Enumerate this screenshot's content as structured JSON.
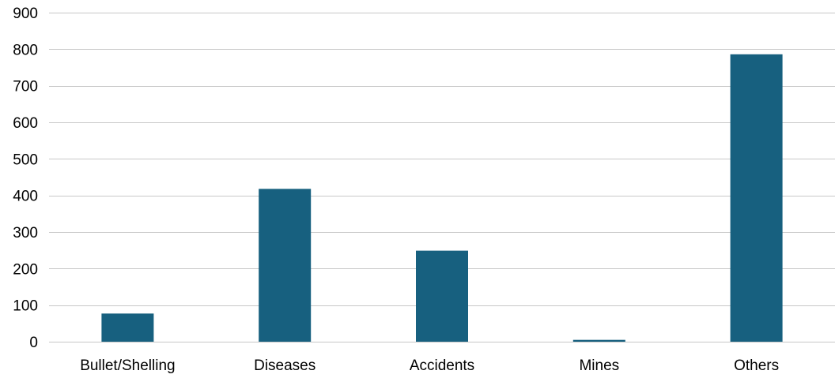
{
  "chart_data": {
    "type": "bar",
    "title": "",
    "xlabel": "",
    "ylabel": "",
    "categories": [
      "Bullet/Shelling",
      "Diseases",
      "Accidents",
      "Mines",
      "Others"
    ],
    "values": [
      77,
      418,
      249,
      5,
      786
    ],
    "ylim": [
      0,
      900
    ],
    "yticks": [
      0,
      100,
      200,
      300,
      400,
      500,
      600,
      700,
      800,
      900
    ],
    "grid": true,
    "legend": "none",
    "colors": {
      "bar": "#17607f",
      "grid": "#c8c8c8",
      "text": "#000000"
    }
  }
}
